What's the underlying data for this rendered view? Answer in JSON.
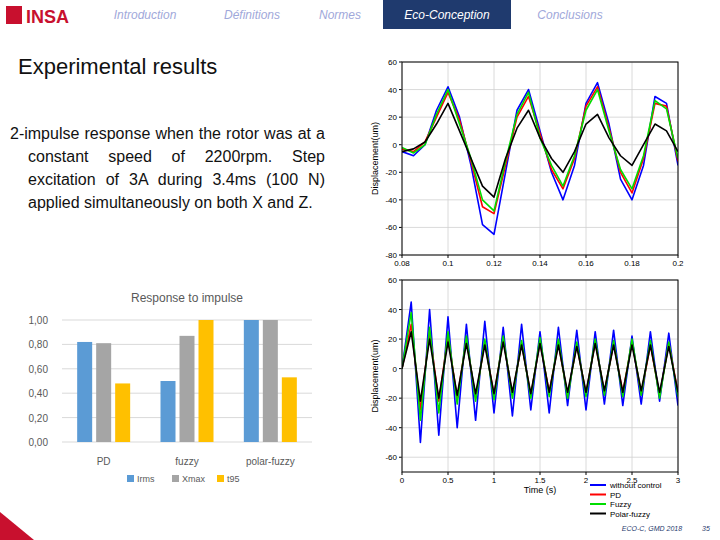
{
  "slide": {
    "logo": "INSA",
    "nav": [
      "Introduction",
      "Définitions",
      "Normes",
      "Eco-Conception",
      "Conclusions"
    ],
    "active_index": 3,
    "title": "Experimental results",
    "text": "2-impulse response when the rotor was at a constant speed of 2200rpm. Step excitation of 3A during 3.4ms (100 N) applied simultaneously on both X and Z.",
    "footer": "ECO-C, GMD 2018",
    "page": "35"
  },
  "chart_data": [
    {
      "type": "bar",
      "title": "Response to impulse",
      "categories": [
        "PD",
        "fuzzy",
        "polar-fuzzy"
      ],
      "series": [
        {
          "name": "Irms",
          "color": "#5b9bd5",
          "values": [
            0.82,
            0.5,
            1.0
          ]
        },
        {
          "name": "Xmax",
          "color": "#a5a5a5",
          "values": [
            0.81,
            0.87,
            1.0
          ]
        },
        {
          "name": "t95",
          "color": "#ffc000",
          "values": [
            0.48,
            1.0,
            0.53
          ]
        }
      ],
      "ylim": [
        0,
        1
      ],
      "yticks": [
        {
          "value": 0,
          "label": "0,00"
        },
        {
          "value": 0.2,
          "label": "0,20"
        },
        {
          "value": 0.4,
          "label": "0,40"
        },
        {
          "value": 0.6,
          "label": "0,60"
        },
        {
          "value": 0.8,
          "label": "0,80"
        },
        {
          "value": 1,
          "label": "1,00"
        }
      ],
      "grid": true,
      "legend": "bottom"
    },
    {
      "type": "line",
      "ylabel": "Displacement(um)",
      "x": [
        0.08,
        0.085,
        0.09,
        0.095,
        0.1,
        0.105,
        0.11,
        0.115,
        0.12,
        0.125,
        0.13,
        0.135,
        0.14,
        0.145,
        0.15,
        0.155,
        0.16,
        0.165,
        0.17,
        0.175,
        0.18,
        0.185,
        0.19,
        0.195,
        0.2
      ],
      "series": [
        {
          "color": "#0000ff",
          "values": [
            -5,
            -8,
            0,
            25,
            42,
            20,
            -15,
            -58,
            -65,
            -20,
            25,
            40,
            10,
            -20,
            -40,
            -15,
            30,
            45,
            15,
            -25,
            -40,
            -15,
            35,
            30,
            -15
          ]
        },
        {
          "color": "#ff0000",
          "values": [
            -3,
            -5,
            2,
            20,
            38,
            18,
            -12,
            -45,
            -50,
            -15,
            20,
            35,
            8,
            -18,
            -32,
            -10,
            28,
            42,
            12,
            -20,
            -35,
            -10,
            30,
            28,
            -12
          ]
        },
        {
          "color": "#00dd00",
          "values": [
            -2,
            -6,
            0,
            22,
            40,
            15,
            -10,
            -40,
            -48,
            -12,
            22,
            38,
            5,
            -15,
            -30,
            -8,
            25,
            40,
            10,
            -18,
            -32,
            -8,
            32,
            26,
            -10
          ]
        },
        {
          "color": "#000000",
          "values": [
            -5,
            -3,
            2,
            15,
            30,
            10,
            -10,
            -30,
            -38,
            -10,
            12,
            25,
            5,
            -10,
            -20,
            -5,
            15,
            22,
            5,
            -8,
            -15,
            0,
            15,
            10,
            -5
          ]
        }
      ],
      "xlim": [
        0.08,
        0.2
      ],
      "xticks": [
        0.08,
        0.1,
        0.12,
        0.14,
        0.16,
        0.18,
        0.2
      ],
      "ylim": [
        -80,
        60
      ],
      "yticks": [
        -80,
        -60,
        -40,
        -20,
        0,
        20,
        40,
        60
      ],
      "grid": true
    },
    {
      "type": "line",
      "ylabel": "Displacement(um)",
      "xlabel": "Time (s)",
      "x": [
        0,
        0.1,
        0.2,
        0.3,
        0.4,
        0.5,
        0.6,
        0.7,
        0.8,
        0.9,
        1,
        1.1,
        1.2,
        1.3,
        1.4,
        1.5,
        1.6,
        1.7,
        1.8,
        1.9,
        2,
        2.1,
        2.2,
        2.3,
        2.4,
        2.5,
        2.6,
        2.7,
        2.8,
        2.9,
        3
      ],
      "series": [
        {
          "name": "without control",
          "color": "#0000ff",
          "values": [
            0,
            45,
            -50,
            40,
            -45,
            35,
            -40,
            30,
            -35,
            32,
            -30,
            28,
            -32,
            30,
            -28,
            25,
            -30,
            28,
            -25,
            26,
            -28,
            25,
            -24,
            26,
            -25,
            22,
            -24,
            25,
            -22,
            24,
            -25
          ]
        },
        {
          "name": "PD",
          "color": "#ff0000",
          "values": [
            0,
            30,
            -28,
            25,
            -22,
            22,
            -20,
            20,
            -20,
            18,
            -18,
            20,
            -18,
            17,
            -18,
            18,
            -16,
            17,
            -18,
            16,
            -17,
            18,
            -16,
            17,
            -16,
            18,
            -17,
            16,
            -18,
            17,
            -16
          ]
        },
        {
          "name": "Fuzzy",
          "color": "#00dd00",
          "values": [
            0,
            38,
            -35,
            28,
            -30,
            25,
            -24,
            22,
            -22,
            20,
            -21,
            22,
            -20,
            19,
            -20,
            21,
            -19,
            20,
            -20,
            18,
            -19,
            20,
            -18,
            19,
            -19,
            20,
            -18,
            19,
            -20,
            18,
            -19
          ]
        },
        {
          "name": "Polar-fuzzy",
          "color": "#000000",
          "values": [
            0,
            25,
            -22,
            20,
            -20,
            18,
            -18,
            17,
            -17,
            16,
            -17,
            18,
            -16,
            16,
            -17,
            17,
            -16,
            16,
            -16,
            15,
            -16,
            17,
            -15,
            16,
            -16,
            16,
            -15,
            16,
            -16,
            15,
            -16
          ]
        }
      ],
      "xlim": [
        0,
        3
      ],
      "xticks": [
        0,
        0.5,
        1,
        1.5,
        2,
        2.5,
        3
      ],
      "ylim": [
        -70,
        60
      ],
      "yticks": [
        -60,
        -40,
        -20,
        0,
        20,
        40,
        60
      ],
      "grid": true,
      "legend": "lower right"
    }
  ]
}
